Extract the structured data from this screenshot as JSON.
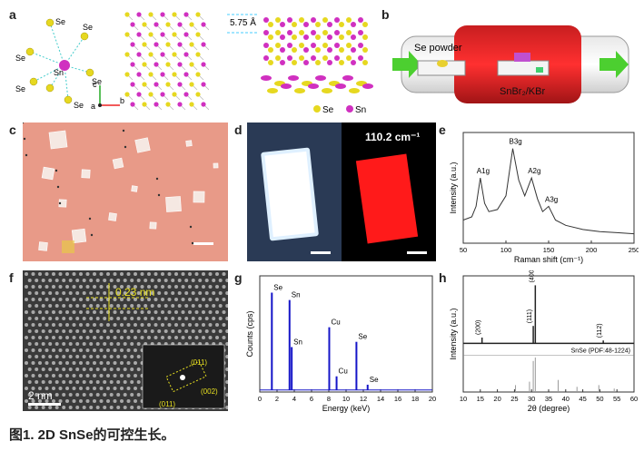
{
  "panel_labels": [
    "a",
    "b",
    "c",
    "d",
    "e",
    "f",
    "g",
    "h"
  ],
  "panel_a": {
    "atoms_center": [
      "Se",
      "Se",
      "Se",
      "Sn",
      "Se",
      "Se",
      "Se"
    ],
    "spacing_label": "5.75 Å",
    "axes_left": [
      "c",
      "b",
      "a"
    ],
    "axes_right": [
      "c",
      "b",
      "a"
    ],
    "axes_bottom": [
      "c",
      "b",
      "a"
    ],
    "legend": [
      "Se",
      "Sn"
    ]
  },
  "panel_b": {
    "se_label": "Se powder",
    "substrate_label": "SnBr₂/KBr"
  },
  "panel_d": {
    "raman_peak": "110.2 cm⁻¹"
  },
  "panel_f": {
    "spacing": "0.23 nm",
    "scale": "2 nm",
    "fft_labels": [
      "(011)",
      "(002)",
      "(011)"
    ]
  },
  "chart_data": [
    {
      "type": "line",
      "id": "e",
      "xlabel": "Raman shift (cm⁻¹)",
      "ylabel": "Intensity (a.u.)",
      "xlim": [
        50,
        250
      ],
      "xticks": [
        50,
        100,
        150,
        200,
        250
      ],
      "peaks": [
        {
          "label": "A1g",
          "x": 70
        },
        {
          "label": "B3g",
          "x": 108
        },
        {
          "label": "A2g",
          "x": 130
        },
        {
          "label": "A3g",
          "x": 150
        }
      ],
      "series": [
        {
          "x": [
            50,
            60,
            65,
            70,
            75,
            80,
            90,
            100,
            108,
            115,
            122,
            130,
            137,
            143,
            150,
            158,
            170,
            190,
            210,
            230,
            250
          ],
          "y": [
            0.22,
            0.25,
            0.35,
            0.62,
            0.38,
            0.3,
            0.32,
            0.45,
            0.9,
            0.6,
            0.45,
            0.62,
            0.42,
            0.3,
            0.35,
            0.22,
            0.17,
            0.13,
            0.11,
            0.1,
            0.09
          ]
        }
      ]
    },
    {
      "type": "bar",
      "id": "g",
      "xlabel": "Energy (keV)",
      "ylabel": "Counts (cps)",
      "xlim": [
        0,
        20
      ],
      "xticks": [
        0,
        2,
        4,
        6,
        8,
        10,
        12,
        14,
        16,
        18,
        20
      ],
      "peaks": [
        {
          "label": "Se",
          "x": 1.4,
          "y": 0.95
        },
        {
          "label": "Sn",
          "x": 3.45,
          "y": 0.88
        },
        {
          "label": "Sn",
          "x": 3.7,
          "y": 0.43
        },
        {
          "label": "Cu",
          "x": 8.05,
          "y": 0.62
        },
        {
          "label": "Cu",
          "x": 8.9,
          "y": 0.15
        },
        {
          "label": "Se",
          "x": 11.2,
          "y": 0.48
        },
        {
          "label": "Se",
          "x": 12.5,
          "y": 0.07
        }
      ]
    },
    {
      "type": "line",
      "id": "h",
      "xlabel": "2θ (degree)",
      "ylabel": "Intensity (a.u.)",
      "xlim": [
        10,
        60
      ],
      "xticks": [
        10,
        15,
        20,
        25,
        30,
        35,
        40,
        45,
        50,
        55,
        60
      ],
      "reference": "SnSe (PDF:48-1224)",
      "peaks": [
        {
          "label": "(200)",
          "x": 15.5,
          "y": 0.1
        },
        {
          "label": "(111)",
          "x": 30.5,
          "y": 0.3
        },
        {
          "label": "(400)",
          "x": 31.1,
          "y": 1.0
        },
        {
          "label": "(112)",
          "x": 51.0,
          "y": 0.05
        }
      ]
    }
  ],
  "caption": "图1. 2D SnSe的可控生长。"
}
